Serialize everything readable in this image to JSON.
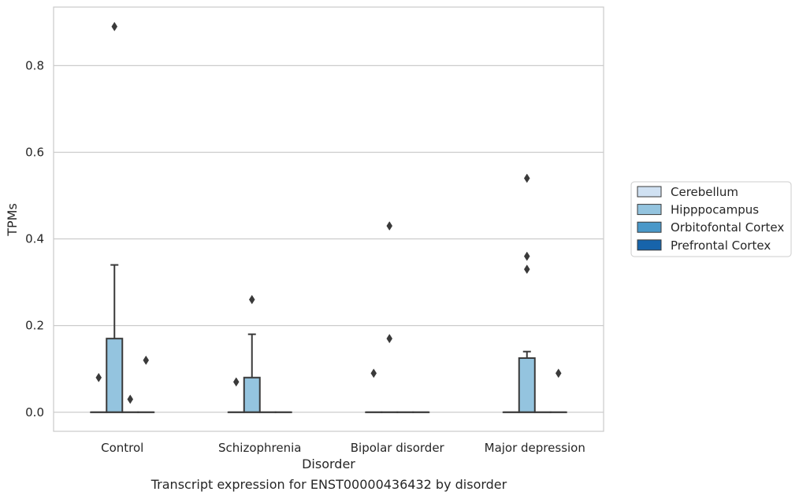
{
  "caption": "Transcript expression for ENST00000436432 by disorder",
  "chart_data": {
    "type": "box",
    "xlabel": "Disorder",
    "ylabel": "TPMs",
    "categories": [
      "Control",
      "Schizophrenia",
      "Bipolar disorder",
      "Major depression"
    ],
    "ylim": [
      -0.044,
      0.935
    ],
    "yticks": [
      0.0,
      0.2,
      0.4,
      0.6,
      0.8
    ],
    "ytick_labels": [
      "0.0",
      "0.2",
      "0.4",
      "0.6",
      "0.8"
    ],
    "grid": true,
    "legend_position": "right, outside plot",
    "series": [
      {
        "name": "Cerebellum",
        "color": "#d0e1f2",
        "boxes": [
          {
            "q1": 0,
            "median": 0,
            "q3": 0,
            "whisker_low": 0,
            "whisker_high": 0,
            "fliers": [
              0.08
            ]
          },
          {
            "q1": 0,
            "median": 0,
            "q3": 0,
            "whisker_low": 0,
            "whisker_high": 0,
            "fliers": [
              0.07
            ]
          },
          {
            "q1": 0,
            "median": 0,
            "q3": 0,
            "whisker_low": 0,
            "whisker_high": 0,
            "fliers": [
              0.09
            ]
          },
          {
            "q1": 0,
            "median": 0,
            "q3": 0,
            "whisker_low": 0,
            "whisker_high": 0,
            "fliers": []
          }
        ]
      },
      {
        "name": "Hipppocampus",
        "color": "#94c4df",
        "boxes": [
          {
            "q1": 0,
            "median": 0,
            "q3": 0.17,
            "whisker_low": 0,
            "whisker_high": 0.34,
            "fliers": [
              0.89
            ]
          },
          {
            "q1": 0,
            "median": 0,
            "q3": 0.08,
            "whisker_low": 0,
            "whisker_high": 0.18,
            "fliers": [
              0.26
            ]
          },
          {
            "q1": 0,
            "median": 0,
            "q3": 0,
            "whisker_low": 0,
            "whisker_high": 0,
            "fliers": [
              0.43,
              0.17
            ]
          },
          {
            "q1": 0,
            "median": 0,
            "q3": 0.125,
            "whisker_low": 0,
            "whisker_high": 0.14,
            "fliers": [
              0.54,
              0.36,
              0.33
            ]
          }
        ]
      },
      {
        "name": "Orbitofontal Cortex",
        "color": "#4a98c9",
        "boxes": [
          {
            "q1": 0,
            "median": 0,
            "q3": 0,
            "whisker_low": 0,
            "whisker_high": 0,
            "fliers": [
              0.03
            ]
          },
          {
            "q1": 0,
            "median": 0,
            "q3": 0,
            "whisker_low": 0,
            "whisker_high": 0,
            "fliers": []
          },
          {
            "q1": 0,
            "median": 0,
            "q3": 0,
            "whisker_low": 0,
            "whisker_high": 0,
            "fliers": []
          },
          {
            "q1": 0,
            "median": 0,
            "q3": 0,
            "whisker_low": 0,
            "whisker_high": 0,
            "fliers": []
          }
        ]
      },
      {
        "name": "Prefrontal Cortex",
        "color": "#1764ab",
        "boxes": [
          {
            "q1": 0,
            "median": 0,
            "q3": 0,
            "whisker_low": 0,
            "whisker_high": 0,
            "fliers": [
              0.12
            ]
          },
          {
            "q1": 0,
            "median": 0,
            "q3": 0,
            "whisker_low": 0,
            "whisker_high": 0,
            "fliers": []
          },
          {
            "q1": 0,
            "median": 0,
            "q3": 0,
            "whisker_low": 0,
            "whisker_high": 0,
            "fliers": []
          },
          {
            "q1": 0,
            "median": 0,
            "q3": 0,
            "whisker_low": 0,
            "whisker_high": 0,
            "fliers": [
              0.09
            ]
          }
        ]
      }
    ]
  }
}
